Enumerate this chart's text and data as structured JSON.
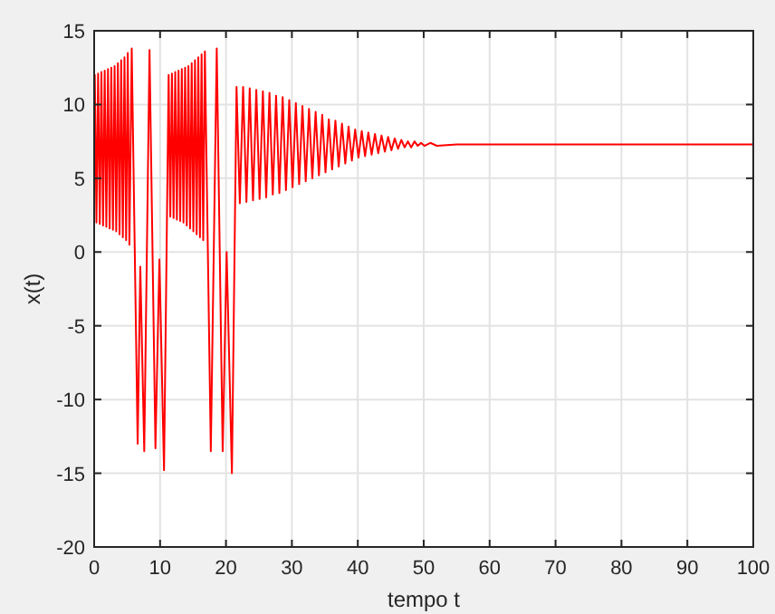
{
  "chart_data": {
    "type": "line",
    "xlabel": "tempo t",
    "ylabel": "x(t)",
    "xlim": [
      0,
      100
    ],
    "ylim": [
      -20,
      15
    ],
    "xticks": [
      0,
      10,
      20,
      30,
      40,
      50,
      60,
      70,
      80,
      90,
      100
    ],
    "yticks": [
      -20,
      -15,
      -10,
      -5,
      0,
      5,
      10,
      15
    ],
    "grid": true,
    "marker": "none",
    "line_style": "solid",
    "series": [
      {
        "color": "#ff0000",
        "x": [
          0,
          0.1,
          0.35,
          0.6,
          0.85,
          1.1,
          1.35,
          1.6,
          1.85,
          2.1,
          2.35,
          2.6,
          2.85,
          3.1,
          3.35,
          3.6,
          3.85,
          4.1,
          4.35,
          4.6,
          4.85,
          5.1,
          5.35,
          5.7,
          6.6,
          7.0,
          7.6,
          8.4,
          9.3,
          9.9,
          10.6,
          11.3,
          11.55,
          11.8,
          12.05,
          12.3,
          12.55,
          12.8,
          13.05,
          13.3,
          13.55,
          13.8,
          14.05,
          14.3,
          14.55,
          14.8,
          15.05,
          15.3,
          15.55,
          15.8,
          16.05,
          16.3,
          16.55,
          16.8,
          17.7,
          18.6,
          19.5,
          20.1,
          20.9,
          21.6,
          22.1,
          22.6,
          23.1,
          23.6,
          24.1,
          24.6,
          25.1,
          25.6,
          26.1,
          26.6,
          27.1,
          27.6,
          28.1,
          28.6,
          29.1,
          29.6,
          30.1,
          30.6,
          31.1,
          31.6,
          32.1,
          32.6,
          33.1,
          33.6,
          34.1,
          34.6,
          35.1,
          35.6,
          36.1,
          36.6,
          37.1,
          37.6,
          38.1,
          38.6,
          39.1,
          39.6,
          40.1,
          40.6,
          41.1,
          41.6,
          42.1,
          42.6,
          43.1,
          43.6,
          44.1,
          44.6,
          45.1,
          45.6,
          46.1,
          46.6,
          47.1,
          47.6,
          48.1,
          48.6,
          49.1,
          49.6,
          50.1,
          51,
          52,
          55,
          60,
          100
        ],
        "values": [
          7,
          12,
          2,
          12.1,
          1.9,
          12.2,
          1.8,
          12.3,
          1.7,
          12.4,
          1.6,
          12.5,
          1.5,
          12.6,
          1.4,
          12.8,
          1.2,
          13,
          1,
          13.2,
          0.8,
          13.5,
          0.5,
          13.8,
          -13,
          -1,
          -13.5,
          13.7,
          -13.3,
          -0.5,
          -14.8,
          12,
          2.4,
          12.1,
          2.3,
          12.2,
          2.2,
          12.3,
          2.1,
          12.4,
          2,
          12.5,
          1.8,
          12.6,
          1.6,
          12.8,
          1.4,
          13,
          1.2,
          13.2,
          1,
          13.4,
          0.8,
          13.6,
          -13.5,
          13.8,
          -13.5,
          0,
          -15,
          11.2,
          3.3,
          11.2,
          3.4,
          11.1,
          3.5,
          11,
          3.6,
          10.9,
          3.7,
          10.8,
          3.9,
          10.6,
          4,
          10.5,
          4.2,
          10.3,
          4.4,
          10.1,
          4.6,
          9.9,
          4.8,
          9.7,
          5,
          9.5,
          5.2,
          9.3,
          5.4,
          9,
          5.6,
          8.9,
          5.8,
          8.7,
          6,
          8.5,
          6.2,
          8.3,
          6.4,
          8.2,
          6.5,
          8.1,
          6.6,
          8,
          6.7,
          7.9,
          6.8,
          7.8,
          6.9,
          7.7,
          7,
          7.6,
          7.1,
          7.5,
          7.1,
          7.5,
          7.2,
          7.4,
          7.2,
          7.4,
          7.2,
          7.3,
          7.3,
          7.3
        ]
      }
    ]
  }
}
